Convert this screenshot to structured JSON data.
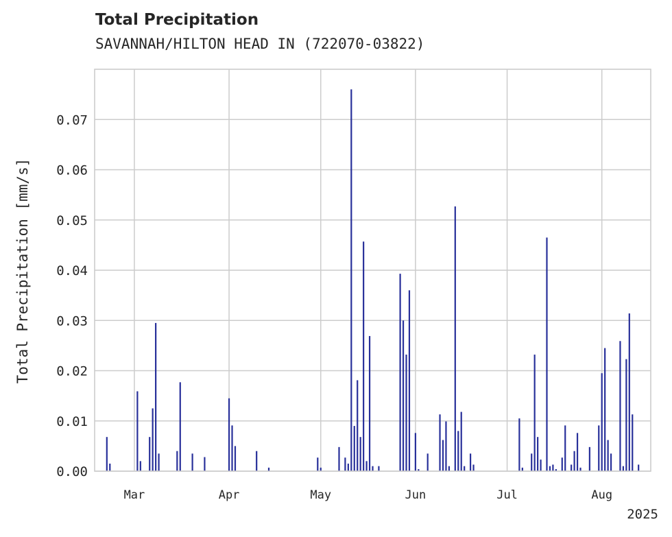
{
  "chart_data": {
    "type": "bar",
    "title": "Total Precipitation",
    "subtitle": "SAVANNAH/HILTON HEAD IN (722070-03822)",
    "xlabel": "",
    "ylabel": "Total Precipitation [mm/s]",
    "ylim": [
      0,
      0.08
    ],
    "yticks": [
      "0.00",
      "0.01",
      "0.02",
      "0.03",
      "0.04",
      "0.05",
      "0.06",
      "0.07"
    ],
    "xticks": [
      "Mar",
      "Apr",
      "May",
      "Jun",
      "Jul",
      "Aug"
    ],
    "year_label": "2025",
    "grid": true,
    "bar_color": "#28309a",
    "x": [
      "2025-02-20",
      "2025-02-21",
      "2025-03-02",
      "2025-03-03",
      "2025-03-06",
      "2025-03-07",
      "2025-03-08",
      "2025-03-09",
      "2025-03-15",
      "2025-03-16",
      "2025-03-20",
      "2025-03-24",
      "2025-04-01",
      "2025-04-02",
      "2025-04-03",
      "2025-04-10",
      "2025-04-14",
      "2025-04-30",
      "2025-05-01",
      "2025-05-07",
      "2025-05-09",
      "2025-05-10",
      "2025-05-11",
      "2025-05-12",
      "2025-05-13",
      "2025-05-14",
      "2025-05-15",
      "2025-05-16",
      "2025-05-17",
      "2025-05-18",
      "2025-05-20",
      "2025-05-27",
      "2025-05-28",
      "2025-05-29",
      "2025-05-30",
      "2025-06-01",
      "2025-06-02",
      "2025-06-05",
      "2025-06-09",
      "2025-06-10",
      "2025-06-11",
      "2025-06-12",
      "2025-06-14",
      "2025-06-15",
      "2025-06-16",
      "2025-06-17",
      "2025-06-19",
      "2025-06-20",
      "2025-07-05",
      "2025-07-06",
      "2025-07-09",
      "2025-07-10",
      "2025-07-11",
      "2025-07-12",
      "2025-07-14",
      "2025-07-15",
      "2025-07-16",
      "2025-07-17",
      "2025-07-19",
      "2025-07-20",
      "2025-07-22",
      "2025-07-23",
      "2025-07-24",
      "2025-07-25",
      "2025-07-28",
      "2025-07-31",
      "2025-08-01",
      "2025-08-02",
      "2025-08-03",
      "2025-08-04",
      "2025-08-07",
      "2025-08-08",
      "2025-08-09",
      "2025-08-10",
      "2025-08-11",
      "2025-08-13"
    ],
    "values": [
      0.0068,
      0.0015,
      0.0159,
      0.002,
      0.0068,
      0.0125,
      0.0295,
      0.0035,
      0.004,
      0.0177,
      0.0035,
      0.0028,
      0.0145,
      0.0091,
      0.005,
      0.004,
      0.0007,
      0.0027,
      0.0007,
      0.0048,
      0.0027,
      0.0015,
      0.076,
      0.009,
      0.0181,
      0.0068,
      0.0457,
      0.002,
      0.0269,
      0.001,
      0.001,
      0.0393,
      0.03,
      0.0232,
      0.036,
      0.0076,
      0.0004,
      0.0035,
      0.0113,
      0.0062,
      0.0099,
      0.001,
      0.0527,
      0.008,
      0.0118,
      0.001,
      0.0035,
      0.0013,
      0.0105,
      0.0007,
      0.0035,
      0.0232,
      0.0068,
      0.0023,
      0.0465,
      0.001,
      0.0013,
      0.0004,
      0.0027,
      0.0091,
      0.0013,
      0.004,
      0.0076,
      0.0007,
      0.0048,
      0.0091,
      0.0195,
      0.0245,
      0.0062,
      0.0035,
      0.0259,
      0.001,
      0.0223,
      0.0314,
      0.0113,
      0.0013
    ]
  }
}
